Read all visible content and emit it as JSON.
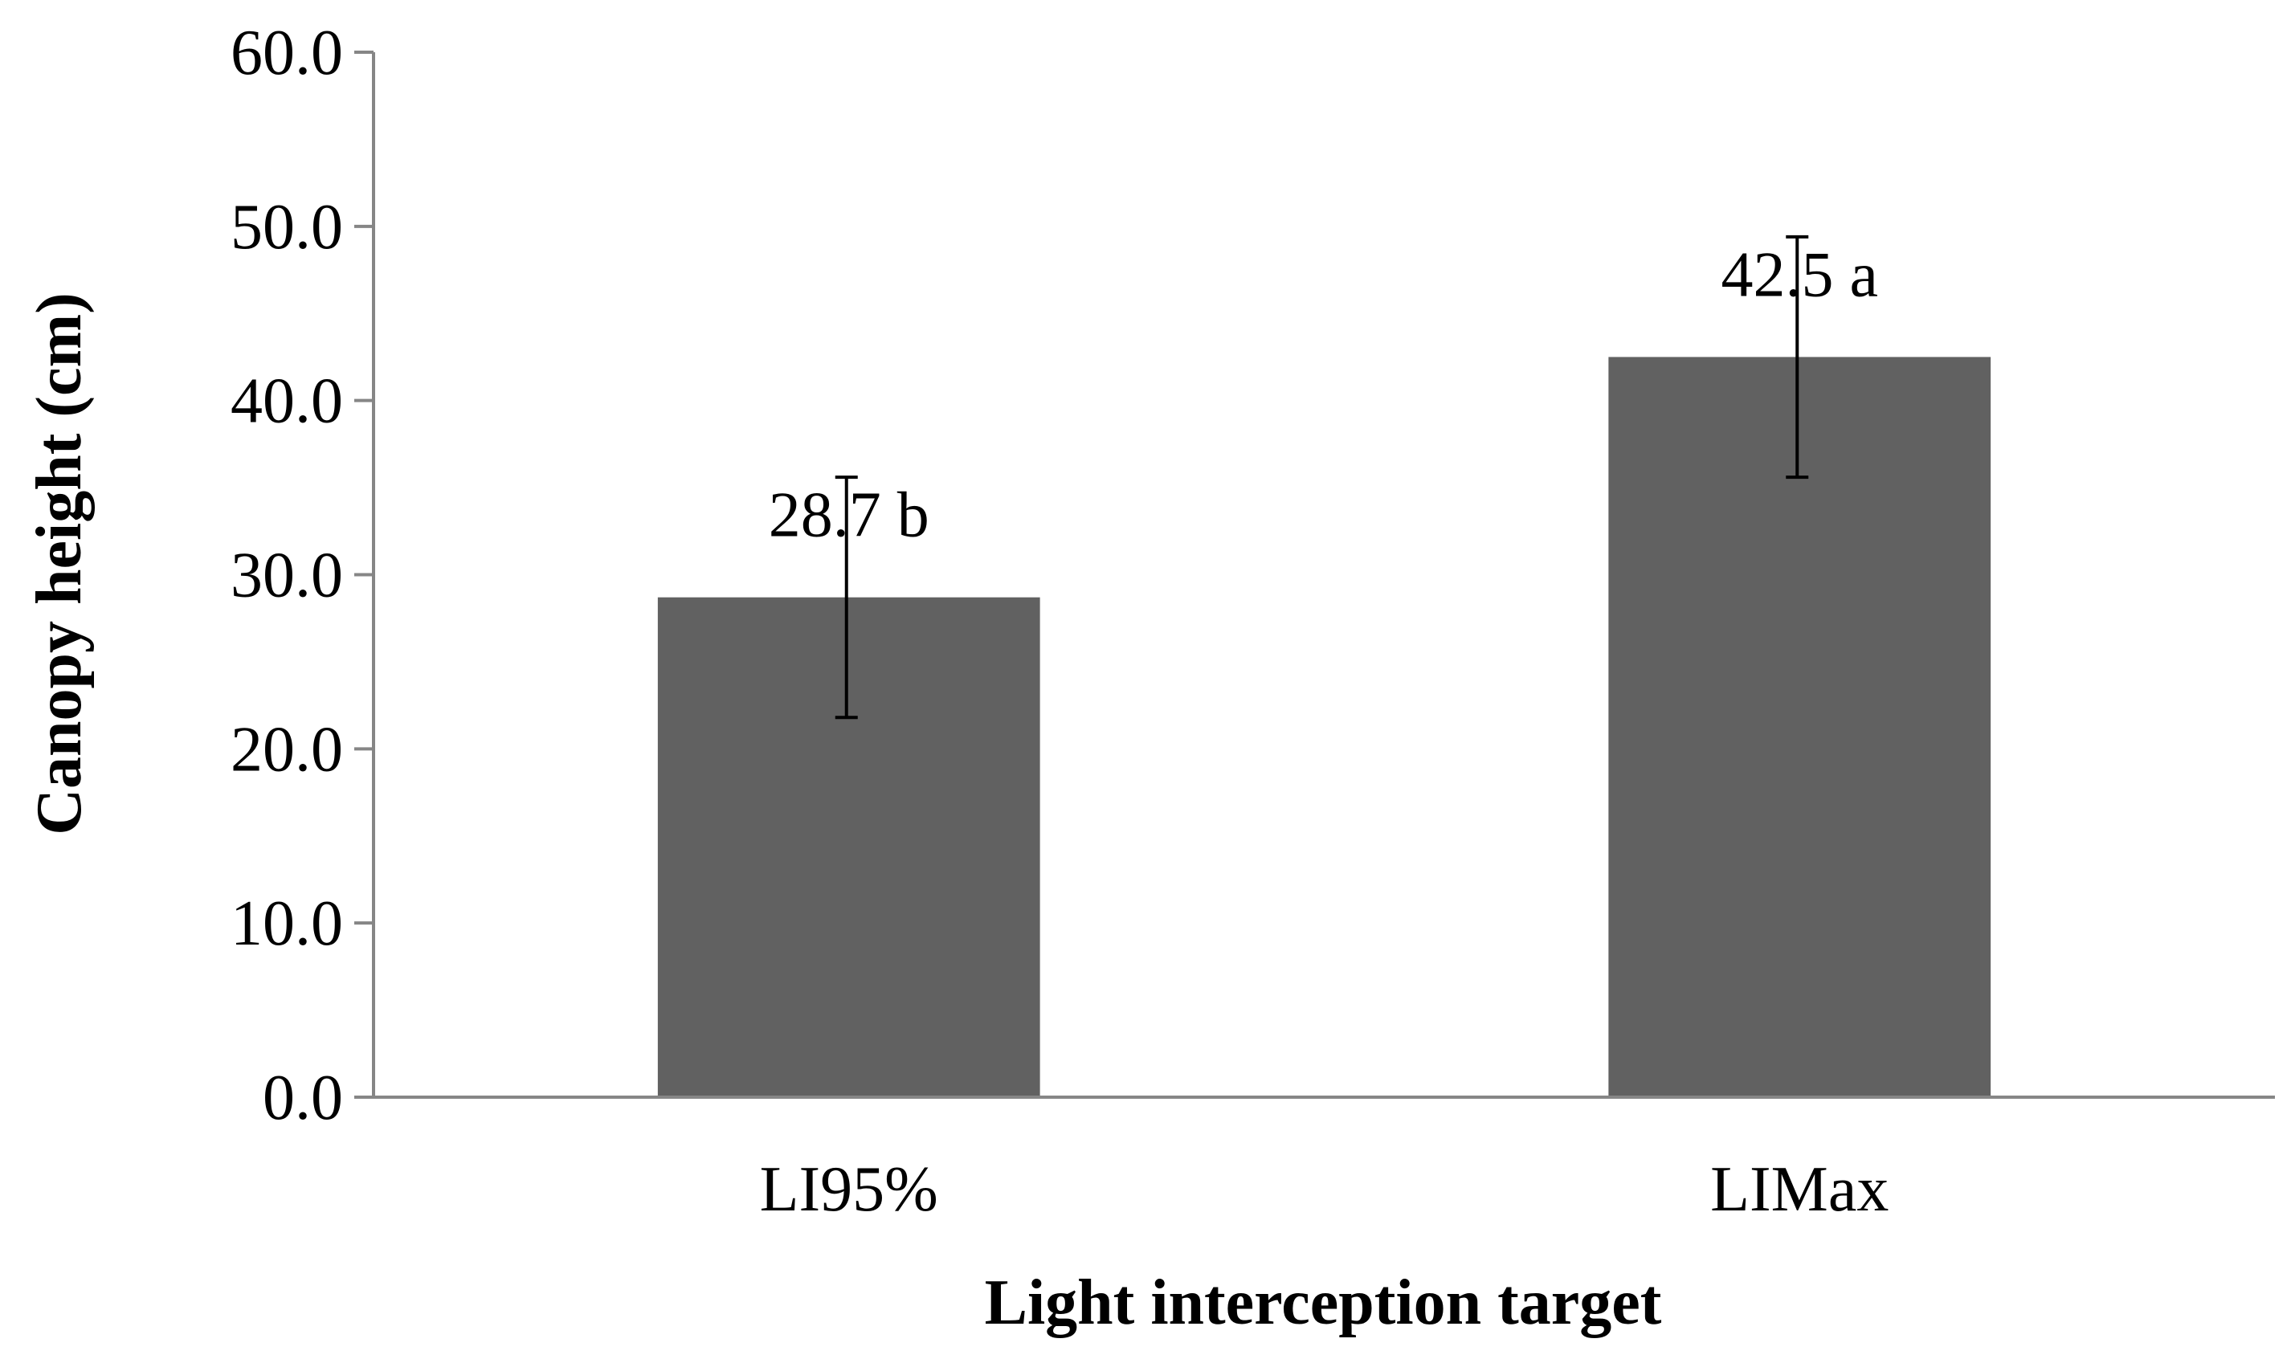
{
  "chart_data": {
    "type": "bar",
    "xlabel": "Light interception target",
    "ylabel": "Canopy height  (cm)",
    "categories": [
      "LI95%",
      "LIMax"
    ],
    "values": [
      28.7,
      42.5
    ],
    "error": [
      6.9,
      6.9
    ],
    "data_labels": [
      "28.7 b",
      "42.5 a"
    ],
    "ylim": [
      0,
      60
    ],
    "yticks": [
      "0.0",
      "10.0",
      "20.0",
      "30.0",
      "40.0",
      "50.0",
      "60.0"
    ],
    "bar_color": "#616161",
    "axis_color": "#868686",
    "grid": false,
    "legend": "none"
  }
}
